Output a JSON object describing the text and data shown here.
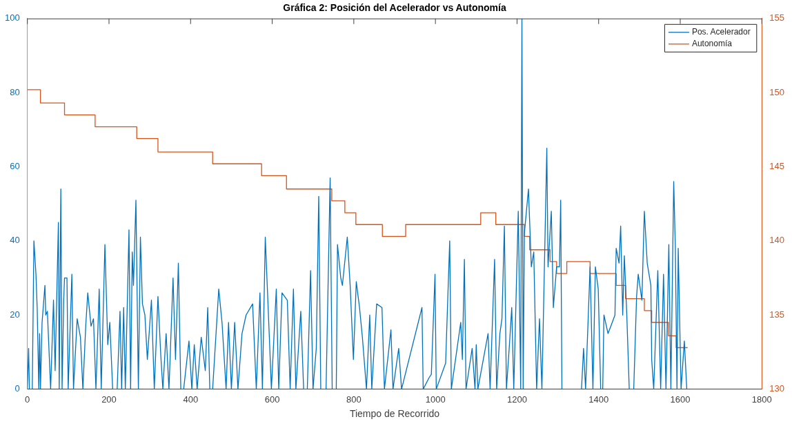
{
  "chart_data": {
    "type": "line",
    "title": "Gráfica 2: Posición del Acelerador vs Autonomía",
    "xlabel": "Tiempo de Recorrido",
    "xlim": [
      0,
      1800
    ],
    "xticks": [
      0,
      200,
      400,
      600,
      800,
      1000,
      1200,
      1400,
      1600,
      1800
    ],
    "ylim": [
      0,
      100
    ],
    "yticks": [
      0,
      20,
      40,
      60,
      80,
      100
    ],
    "y2lim": [
      130,
      155
    ],
    "y2ticks": [
      130,
      135,
      140,
      145,
      150,
      155
    ],
    "legend": "top right",
    "grid": false,
    "series": [
      {
        "name": "Pos. Acelerador",
        "color": "#0072bd",
        "x": [
          0,
          3,
          5,
          8,
          12,
          16,
          21,
          24,
          28,
          30,
          32,
          36,
          43,
          45,
          49,
          57,
          64,
          68,
          76,
          78,
          82,
          85,
          89,
          91,
          97,
          100,
          109,
          113,
          122,
          130,
          136,
          143,
          148,
          156,
          162,
          168,
          176,
          181,
          190,
          197,
          202,
          209,
          220,
          227,
          231,
          236,
          240,
          249,
          253,
          257,
          260,
          266,
          272,
          277,
          282,
          288,
          294,
          304,
          311,
          320,
          327,
          332,
          340,
          347,
          357,
          363,
          370,
          376,
          383,
          396,
          403,
          409,
          416,
          426,
          436,
          442,
          447,
          454,
          469,
          477,
          487,
          493,
          500,
          508,
          516,
          526,
          536,
          552,
          561,
          570,
          576,
          583,
          593,
          598,
          610,
          616,
          624,
          637,
          644,
          652,
          658,
          670,
          677,
          686,
          694,
          700,
          708,
          714,
          719,
          732,
          742,
          747,
          757,
          760,
          768,
          772,
          784,
          791,
          799,
          806,
          814,
          821,
          831,
          839,
          844,
          856,
          869,
          875,
          891,
          896,
          910,
          917,
          967,
          970,
          984,
          990,
          999,
          1002,
          1025,
          1035,
          1039,
          1062,
          1066,
          1071,
          1075,
          1090,
          1097,
          1100,
          1104,
          1129,
          1134,
          1145,
          1150,
          1158,
          1163,
          1169,
          1174,
          1182,
          1187,
          1192,
          1203,
          1209,
          1212,
          1215,
          1218,
          1228,
          1235,
          1241,
          1248,
          1255,
          1261,
          1273,
          1276,
          1284,
          1289,
          1297,
          1304,
          1307,
          1310,
          1358,
          1363,
          1368,
          1379,
          1386,
          1392,
          1399,
          1405,
          1410,
          1413,
          1423,
          1430,
          1440,
          1443,
          1450,
          1454,
          1459,
          1463,
          1469,
          1475,
          1486,
          1493,
          1497,
          1506,
          1512,
          1519,
          1528,
          1530,
          1535,
          1545,
          1552,
          1559,
          1565,
          1572,
          1577,
          1584,
          1588,
          1592,
          1595,
          1602,
          1610,
          1616
        ],
        "values": [
          0,
          11,
          0,
          0,
          0,
          40,
          31,
          22,
          0,
          15,
          0,
          18,
          28,
          20,
          21,
          0,
          24,
          5,
          45,
          0,
          54,
          0,
          24,
          30,
          30,
          0,
          31,
          0,
          19,
          14,
          0,
          17,
          26,
          17,
          19,
          0,
          27,
          0,
          39,
          12,
          18,
          0,
          0,
          21,
          0,
          22,
          0,
          43,
          0,
          37,
          28,
          51,
          0,
          41,
          23,
          20,
          8,
          24,
          0,
          25,
          9,
          0,
          15,
          0,
          30,
          8,
          34,
          0,
          0,
          13,
          0,
          12,
          0,
          14,
          5,
          22,
          0,
          0,
          27,
          18,
          0,
          18,
          0,
          18,
          0,
          15,
          20,
          23,
          0,
          26,
          0,
          41,
          14,
          0,
          27,
          0,
          26,
          24,
          0,
          27,
          0,
          21,
          0,
          0,
          32,
          0,
          11,
          52,
          0,
          0,
          57,
          0,
          0,
          39,
          30,
          28,
          41,
          28,
          8,
          29,
          22,
          14,
          0,
          20,
          0,
          23,
          22,
          0,
          16,
          0,
          11,
          0,
          22,
          0,
          3,
          4,
          31,
          0,
          7,
          40,
          0,
          18,
          8,
          35,
          0,
          11,
          0,
          12,
          0,
          15,
          0,
          35,
          0,
          15,
          19,
          44,
          0,
          13,
          22,
          0,
          48,
          0,
          100,
          0,
          42,
          54,
          33,
          37,
          0,
          19,
          0,
          65,
          33,
          48,
          22,
          33,
          33,
          51,
          0,
          0,
          11,
          0,
          33,
          0,
          33,
          27,
          0,
          0,
          20,
          15,
          17,
          20,
          38,
          34,
          44,
          20,
          36,
          20,
          0,
          0,
          25,
          31,
          24,
          48,
          34,
          28,
          8,
          0,
          32,
          0,
          31,
          0,
          39,
          0,
          56,
          38,
          0,
          38,
          0,
          13,
          0
        ]
      },
      {
        "name": "Autonomía",
        "type": "step",
        "axis": "y2",
        "color": "#d95319",
        "x": [
          0,
          32,
          91,
          166,
          268,
          320,
          454,
          574,
          635,
          746,
          778,
          805,
          870,
          927,
          1111,
          1148,
          1218,
          1231,
          1281,
          1297,
          1322,
          1379,
          1443,
          1466,
          1512,
          1530,
          1571,
          1590,
          1618
        ],
        "values": [
          150.2,
          149.3,
          148.5,
          147.7,
          146.9,
          146.0,
          145.2,
          144.4,
          143.5,
          142.7,
          141.9,
          141.1,
          140.3,
          141.1,
          141.9,
          141.1,
          140.3,
          139.4,
          138.6,
          137.8,
          138.6,
          137.8,
          137.0,
          136.1,
          135.3,
          134.5,
          133.6,
          132.8,
          132.8
        ]
      }
    ]
  }
}
